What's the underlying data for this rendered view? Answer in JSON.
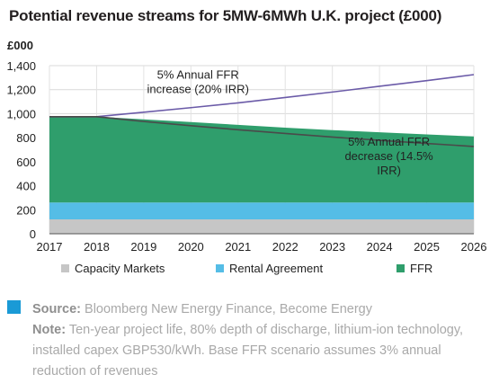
{
  "title": "Potential revenue streams for 5MW-6MWh U.K. project (£000)",
  "chart_data": {
    "type": "area",
    "y_unit_label": "£000",
    "x": [
      "2017",
      "2018",
      "2019",
      "2020",
      "2021",
      "2022",
      "2023",
      "2024",
      "2025",
      "2026"
    ],
    "ylim": [
      0,
      1400
    ],
    "yticks": [
      "0",
      "200",
      "400",
      "600",
      "800",
      "1,000",
      "1,200",
      "1,400"
    ],
    "ytick_values": [
      0,
      200,
      400,
      600,
      800,
      1000,
      1200,
      1400
    ],
    "grid": true,
    "stacked": true,
    "series": [
      {
        "name": "Capacity Markets",
        "color": "#c6c6c6",
        "values": [
          120,
          120,
          120,
          120,
          120,
          120,
          120,
          120,
          120,
          120
        ]
      },
      {
        "name": "Rental Agreement",
        "color": "#55bde6",
        "values": [
          140,
          140,
          140,
          140,
          140,
          140,
          140,
          140,
          140,
          140
        ]
      },
      {
        "name": "FFR",
        "color": "#2f9e6c",
        "values": [
          715,
          715,
          693,
          670,
          647,
          623,
          603,
          585,
          567,
          550
        ]
      }
    ],
    "scenario_lines": [
      {
        "name": "5% Annual FFR increase (20% IRR)",
        "color": "#6b5ba8",
        "values": [
          975,
          975,
          1012,
          1050,
          1090,
          1135,
          1180,
          1228,
          1275,
          1325
        ]
      },
      {
        "name": "5% Annual FFR decrease (14.5% IRR)",
        "color": "#4a4a4a",
        "values": [
          975,
          975,
          935,
          900,
          866,
          835,
          805,
          778,
          752,
          727
        ]
      }
    ],
    "annotations": [
      {
        "text": [
          "5% Annual FFR",
          "increase (20% IRR)"
        ],
        "x_year": "2020.15",
        "y_value": 1290
      },
      {
        "text": [
          "5% Annual FFR",
          "decrease (14.5%",
          "IRR)"
        ],
        "x_year": "2024.2",
        "y_value": 735
      }
    ],
    "legend_position": "bottom"
  },
  "source": {
    "source_label": "Source:",
    "source_text": " Bloomberg New Energy Finance, Become Energy",
    "note_label": "Note:",
    "note_text": " Ten-year project life, 80% depth of discharge, lithium-ion technology, installed capex GBP530/kWh. Base FFR scenario assumes 3% annual reduction of revenues"
  }
}
